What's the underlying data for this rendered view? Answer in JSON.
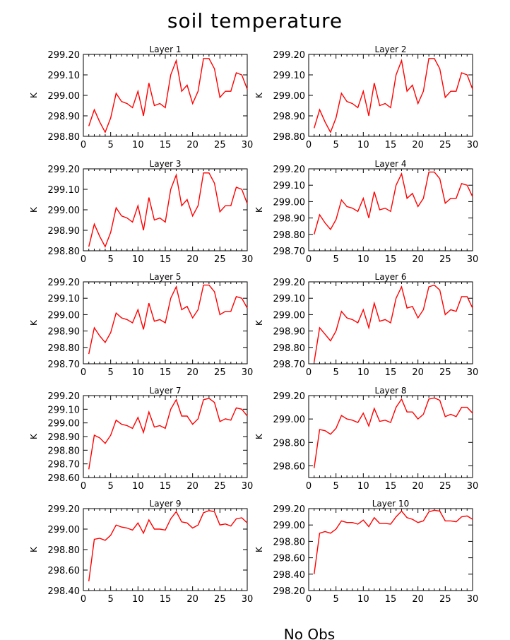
{
  "chart_data": {
    "type": "line",
    "title": "soil temperature",
    "footer": "No Obs",
    "line_color": "#ff0000",
    "x": [
      1,
      2,
      3,
      4,
      5,
      6,
      7,
      8,
      9,
      10,
      11,
      12,
      13,
      14,
      15,
      16,
      17,
      18,
      19,
      20,
      21,
      22,
      23,
      24,
      25,
      26,
      27,
      28,
      29,
      30
    ],
    "xlim": [
      0,
      30
    ],
    "xticks": [
      "0",
      "5",
      "10",
      "15",
      "20",
      "25",
      "30"
    ],
    "panels": [
      {
        "title": "Layer 1",
        "ylabel": "K",
        "ylim": [
          298.8,
          299.2
        ],
        "yticks": [
          "298.80",
          "298.90",
          "299.00",
          "299.10",
          "299.20"
        ],
        "values": [
          298.85,
          298.93,
          298.87,
          298.82,
          298.89,
          299.01,
          298.97,
          298.96,
          298.94,
          299.02,
          298.9,
          299.06,
          298.95,
          298.96,
          298.94,
          299.1,
          299.17,
          299.02,
          299.05,
          298.96,
          299.02,
          299.18,
          299.18,
          299.13,
          298.99,
          299.02,
          299.02,
          299.11,
          299.1,
          299.03
        ]
      },
      {
        "title": "Layer 2",
        "ylabel": "K",
        "ylim": [
          298.8,
          299.2
        ],
        "yticks": [
          "298.80",
          "298.90",
          "299.00",
          "299.10",
          "299.20"
        ],
        "values": [
          298.84,
          298.93,
          298.87,
          298.82,
          298.89,
          299.01,
          298.97,
          298.96,
          298.94,
          299.02,
          298.9,
          299.06,
          298.95,
          298.96,
          298.94,
          299.1,
          299.17,
          299.02,
          299.05,
          298.96,
          299.02,
          299.18,
          299.18,
          299.13,
          298.99,
          299.02,
          299.02,
          299.11,
          299.1,
          299.03
        ]
      },
      {
        "title": "Layer 3",
        "ylabel": "K",
        "ylim": [
          298.8,
          299.2
        ],
        "yticks": [
          "298.80",
          "298.90",
          "299.00",
          "299.10",
          "299.20"
        ],
        "values": [
          298.82,
          298.93,
          298.87,
          298.82,
          298.89,
          299.01,
          298.97,
          298.96,
          298.94,
          299.02,
          298.9,
          299.06,
          298.95,
          298.96,
          298.94,
          299.1,
          299.17,
          299.02,
          299.05,
          298.97,
          299.02,
          299.18,
          299.18,
          299.13,
          298.99,
          299.02,
          299.02,
          299.11,
          299.1,
          299.03
        ]
      },
      {
        "title": "Layer 4",
        "ylabel": "K",
        "ylim": [
          298.7,
          299.2
        ],
        "yticks": [
          "298.70",
          "298.80",
          "298.90",
          "299.00",
          "299.10",
          "299.20"
        ],
        "values": [
          298.8,
          298.92,
          298.87,
          298.83,
          298.89,
          299.01,
          298.97,
          298.96,
          298.94,
          299.02,
          298.9,
          299.06,
          298.95,
          298.96,
          298.94,
          299.1,
          299.17,
          299.02,
          299.05,
          298.97,
          299.02,
          299.18,
          299.18,
          299.14,
          298.99,
          299.02,
          299.02,
          299.11,
          299.1,
          299.03
        ]
      },
      {
        "title": "Layer 5",
        "ylabel": "K",
        "ylim": [
          298.7,
          299.2
        ],
        "yticks": [
          "298.70",
          "298.80",
          "298.90",
          "299.00",
          "299.10",
          "299.20"
        ],
        "values": [
          298.76,
          298.92,
          298.87,
          298.83,
          298.89,
          299.01,
          298.98,
          298.97,
          298.95,
          299.03,
          298.91,
          299.07,
          298.96,
          298.97,
          298.95,
          299.1,
          299.17,
          299.03,
          299.05,
          298.98,
          299.03,
          299.18,
          299.18,
          299.14,
          299.0,
          299.02,
          299.02,
          299.11,
          299.1,
          299.04
        ]
      },
      {
        "title": "Layer 6",
        "ylabel": "K",
        "ylim": [
          298.7,
          299.2
        ],
        "yticks": [
          "298.70",
          "298.80",
          "298.90",
          "299.00",
          "299.10",
          "299.20"
        ],
        "values": [
          298.71,
          298.92,
          298.88,
          298.84,
          298.9,
          299.02,
          298.98,
          298.97,
          298.95,
          299.03,
          298.92,
          299.07,
          298.96,
          298.97,
          298.95,
          299.1,
          299.17,
          299.04,
          299.05,
          298.98,
          299.03,
          299.17,
          299.18,
          299.15,
          299.0,
          299.03,
          299.02,
          299.11,
          299.11,
          299.04
        ]
      },
      {
        "title": "Layer 7",
        "ylabel": "K",
        "ylim": [
          298.6,
          299.2
        ],
        "yticks": [
          "298.60",
          "298.70",
          "298.80",
          "298.90",
          "299.00",
          "299.10",
          "299.20"
        ],
        "values": [
          298.66,
          298.91,
          298.89,
          298.85,
          298.91,
          299.02,
          298.99,
          298.98,
          298.96,
          299.04,
          298.93,
          299.08,
          298.97,
          298.98,
          298.96,
          299.1,
          299.17,
          299.05,
          299.05,
          298.99,
          299.03,
          299.17,
          299.18,
          299.15,
          299.01,
          299.03,
          299.02,
          299.11,
          299.1,
          299.05
        ]
      },
      {
        "title": "Layer 8",
        "ylabel": "K",
        "ylim": [
          298.5,
          299.2
        ],
        "yticks": [
          "298.60",
          "298.80",
          "299.00",
          "299.20"
        ],
        "values": [
          298.58,
          298.91,
          298.9,
          298.87,
          298.92,
          299.03,
          299.0,
          298.99,
          298.97,
          299.05,
          298.94,
          299.09,
          298.98,
          298.99,
          298.97,
          299.1,
          299.17,
          299.06,
          299.06,
          299.0,
          299.04,
          299.17,
          299.18,
          299.16,
          299.02,
          299.04,
          299.02,
          299.1,
          299.1,
          299.05
        ]
      },
      {
        "title": "Layer 9",
        "ylabel": "K",
        "ylim": [
          298.4,
          299.2
        ],
        "yticks": [
          "298.40",
          "298.60",
          "298.80",
          "299.00",
          "299.20"
        ],
        "values": [
          298.49,
          298.9,
          298.91,
          298.89,
          298.94,
          299.04,
          299.02,
          299.01,
          298.99,
          299.06,
          298.96,
          299.09,
          299.0,
          299.0,
          298.99,
          299.1,
          299.17,
          299.07,
          299.06,
          299.01,
          299.04,
          299.16,
          299.18,
          299.17,
          299.04,
          299.05,
          299.03,
          299.1,
          299.11,
          299.06
        ]
      },
      {
        "title": "Layer 10",
        "ylabel": "K",
        "ylim": [
          298.2,
          299.2
        ],
        "yticks": [
          "298.20",
          "298.40",
          "298.60",
          "298.80",
          "299.00",
          "299.20"
        ],
        "values": [
          298.4,
          298.9,
          298.92,
          298.9,
          298.95,
          299.05,
          299.03,
          299.03,
          299.01,
          299.06,
          298.98,
          299.09,
          299.02,
          299.02,
          299.01,
          299.1,
          299.17,
          299.09,
          299.07,
          299.03,
          299.05,
          299.16,
          299.18,
          299.17,
          299.05,
          299.05,
          299.04,
          299.1,
          299.11,
          299.07
        ]
      }
    ]
  }
}
